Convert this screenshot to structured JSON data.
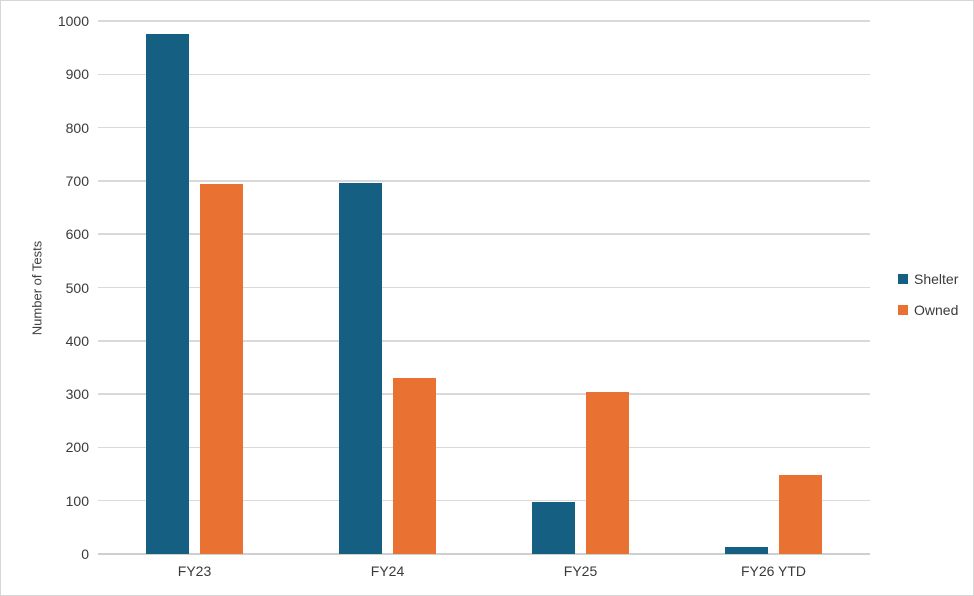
{
  "chart_data": {
    "type": "bar",
    "title": "",
    "xlabel": "",
    "ylabel": "Number of Tests",
    "categories": [
      "FY23",
      "FY24",
      "FY25",
      "FY26 YTD"
    ],
    "series": [
      {
        "name": "Shelter",
        "color": "#156082",
        "values": [
          975,
          696,
          97,
          13
        ]
      },
      {
        "name": "Owned",
        "color": "#E97132",
        "values": [
          694,
          330,
          304,
          148
        ]
      }
    ],
    "ylim": [
      0,
      1000
    ],
    "ytick_step": 100,
    "yticks": [
      0,
      100,
      200,
      300,
      400,
      500,
      600,
      700,
      800,
      900,
      1000
    ],
    "grid": true,
    "legend_position": "right"
  },
  "colors": {
    "gridline": "#d9d9d9",
    "axis_line": "#cfcfcf",
    "label_text": "#3a3a3a",
    "frame_border": "#d6d6d6",
    "background": "#ffffff"
  }
}
